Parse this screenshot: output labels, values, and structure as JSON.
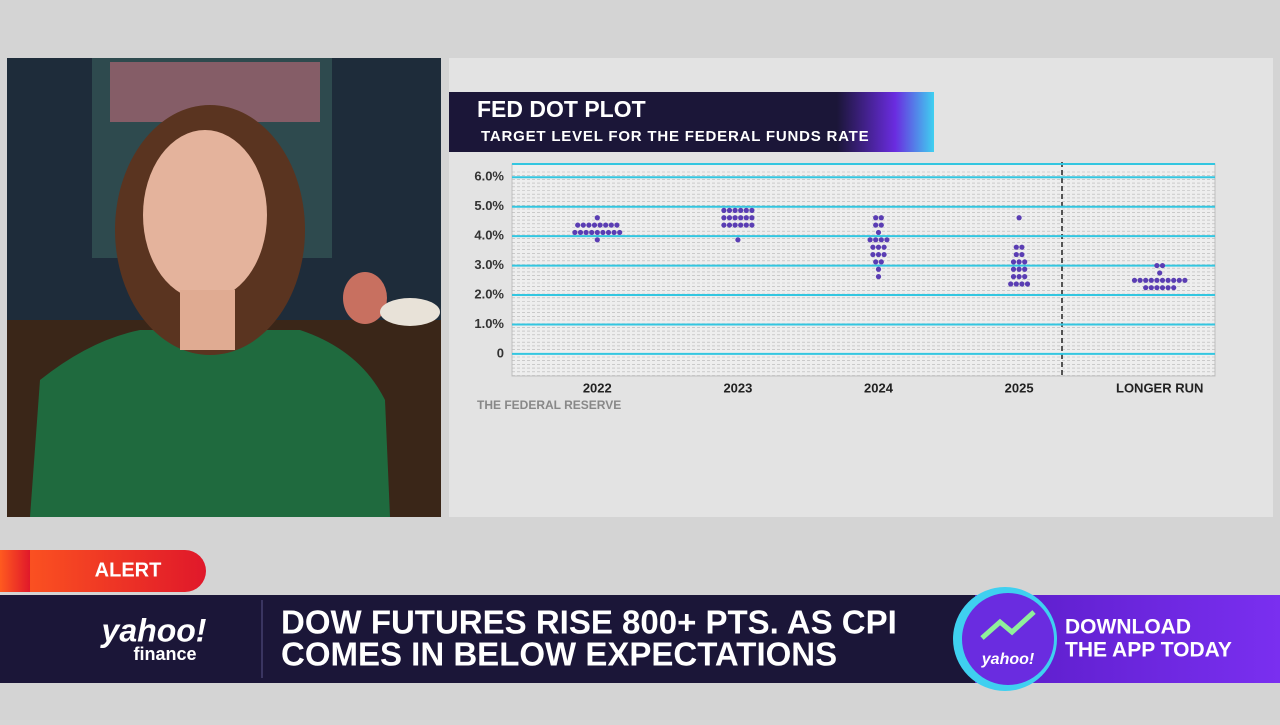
{
  "chart_data": {
    "type": "dotplot",
    "title": "FED DOT PLOT",
    "subtitle": "TARGET LEVEL FOR THE FEDERAL FUNDS RATE",
    "source": "THE FEDERAL RESERVE",
    "categories": [
      "2022",
      "2023",
      "2024",
      "2025",
      "LONGER RUN"
    ],
    "values": [
      [
        4.625,
        4.375,
        4.375,
        4.375,
        4.375,
        4.375,
        4.375,
        4.375,
        4.375,
        4.125,
        4.125,
        4.125,
        4.125,
        4.125,
        4.125,
        4.125,
        4.125,
        4.125,
        3.875
      ],
      [
        4.875,
        4.875,
        4.875,
        4.875,
        4.875,
        4.875,
        4.625,
        4.625,
        4.625,
        4.625,
        4.625,
        4.625,
        4.375,
        4.375,
        4.375,
        4.375,
        4.375,
        4.375,
        3.875
      ],
      [
        4.625,
        4.625,
        4.375,
        4.375,
        4.125,
        3.875,
        3.875,
        3.875,
        3.875,
        3.625,
        3.625,
        3.625,
        3.375,
        3.375,
        3.375,
        3.125,
        3.125,
        2.875,
        2.625
      ],
      [
        4.625,
        3.625,
        3.625,
        3.375,
        3.375,
        3.125,
        3.125,
        3.125,
        2.875,
        2.875,
        2.875,
        2.625,
        2.625,
        2.625,
        2.375,
        2.375,
        2.375,
        2.375
      ],
      [
        3.0,
        3.0,
        2.75,
        2.5,
        2.5,
        2.5,
        2.5,
        2.5,
        2.5,
        2.5,
        2.5,
        2.5,
        2.5,
        2.25,
        2.25,
        2.25,
        2.25,
        2.25,
        2.25
      ]
    ],
    "color": "#5a3db3",
    "ylim": [
      -0.75,
      6.45
    ],
    "yticks": [
      0,
      {
        "value": 1,
        "label": "1.0%"
      },
      {
        "value": 2,
        "label": "2.0%"
      },
      {
        "value": 3,
        "label": "3.0%"
      },
      {
        "value": 4,
        "label": "4.0%"
      },
      {
        "value": 5,
        "label": "5.0%"
      },
      {
        "value": 6,
        "label": "6.0%"
      }
    ],
    "grid": true
  },
  "banner": {
    "alert": "ALERT",
    "headline": [
      "DOW FUTURES RISE 800+ PTS. AS CPI",
      "COMES IN BELOW EXPECTATIONS"
    ],
    "logo": "yahoo!",
    "logo_sub": "finance",
    "app_logo": "yahoo!",
    "app_promo": [
      "DOWNLOAD",
      "THE APP TODAY"
    ]
  }
}
